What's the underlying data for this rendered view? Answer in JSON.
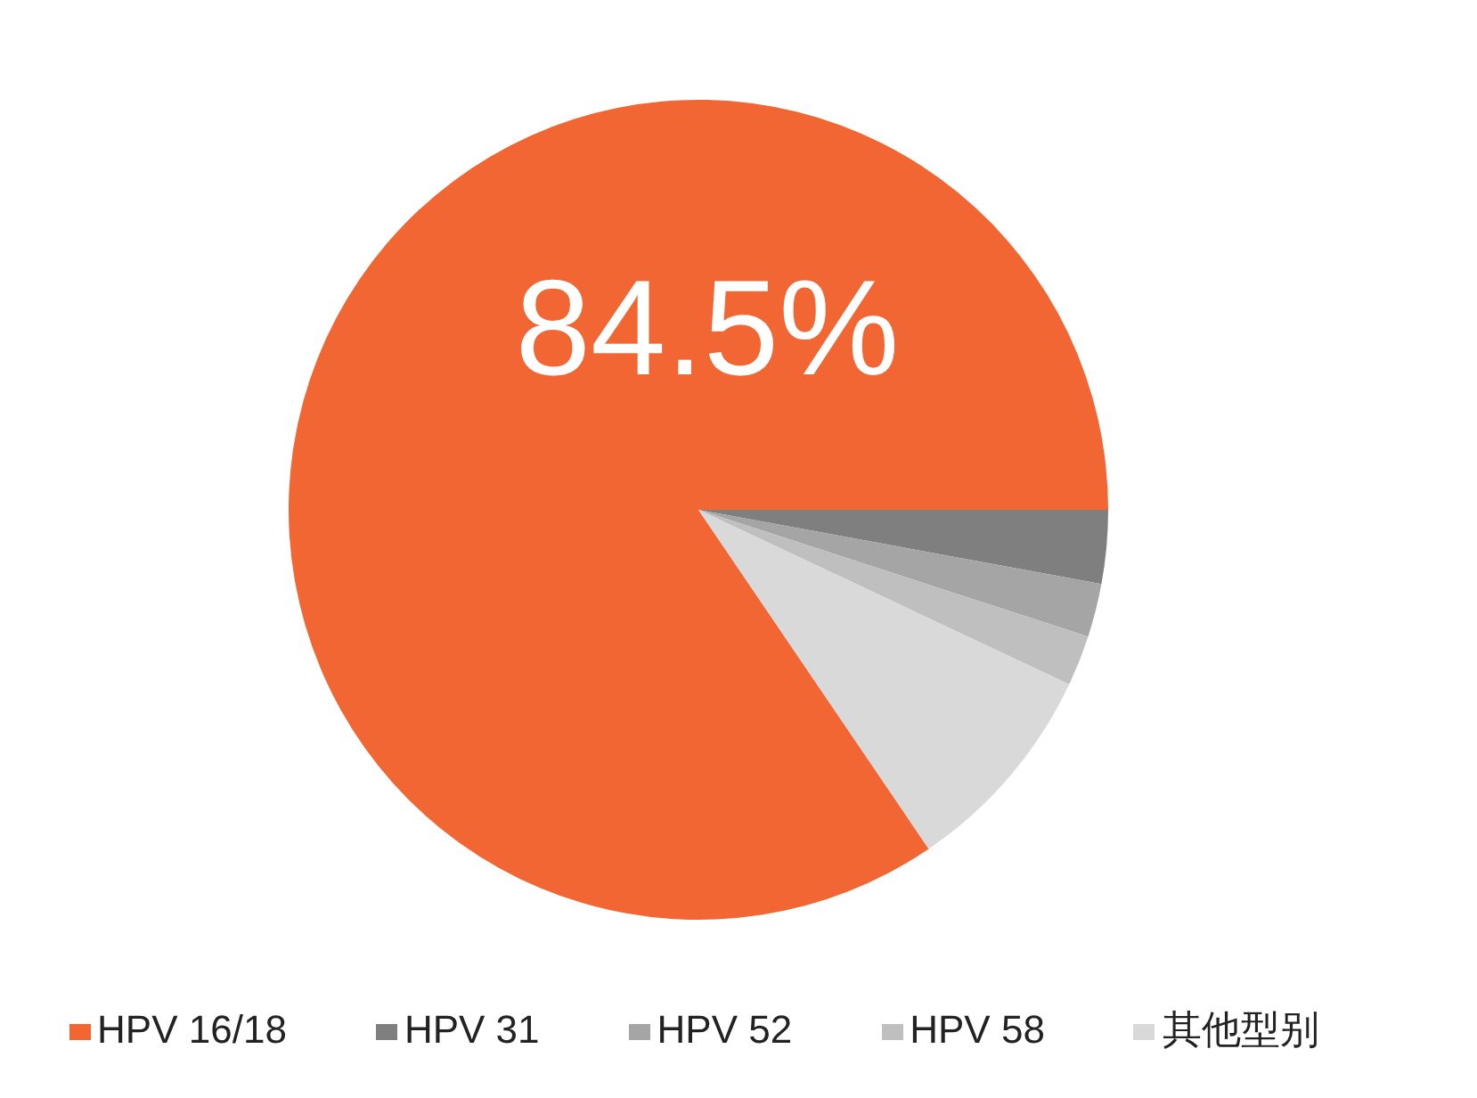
{
  "chart_data": {
    "type": "pie",
    "categories": [
      "HPV 16/18",
      "HPV 31",
      "HPV 52",
      "HPV 58",
      "其他型别"
    ],
    "values": [
      84.5,
      2.9,
      2.1,
      2.0,
      8.5
    ],
    "colors": [
      "#f26633",
      "#7f7f7f",
      "#a5a5a5",
      "#bfbfbf",
      "#d9d9d9"
    ],
    "value_labels": [
      "84.5%",
      null,
      null,
      null,
      null
    ],
    "legend": "bottom"
  }
}
